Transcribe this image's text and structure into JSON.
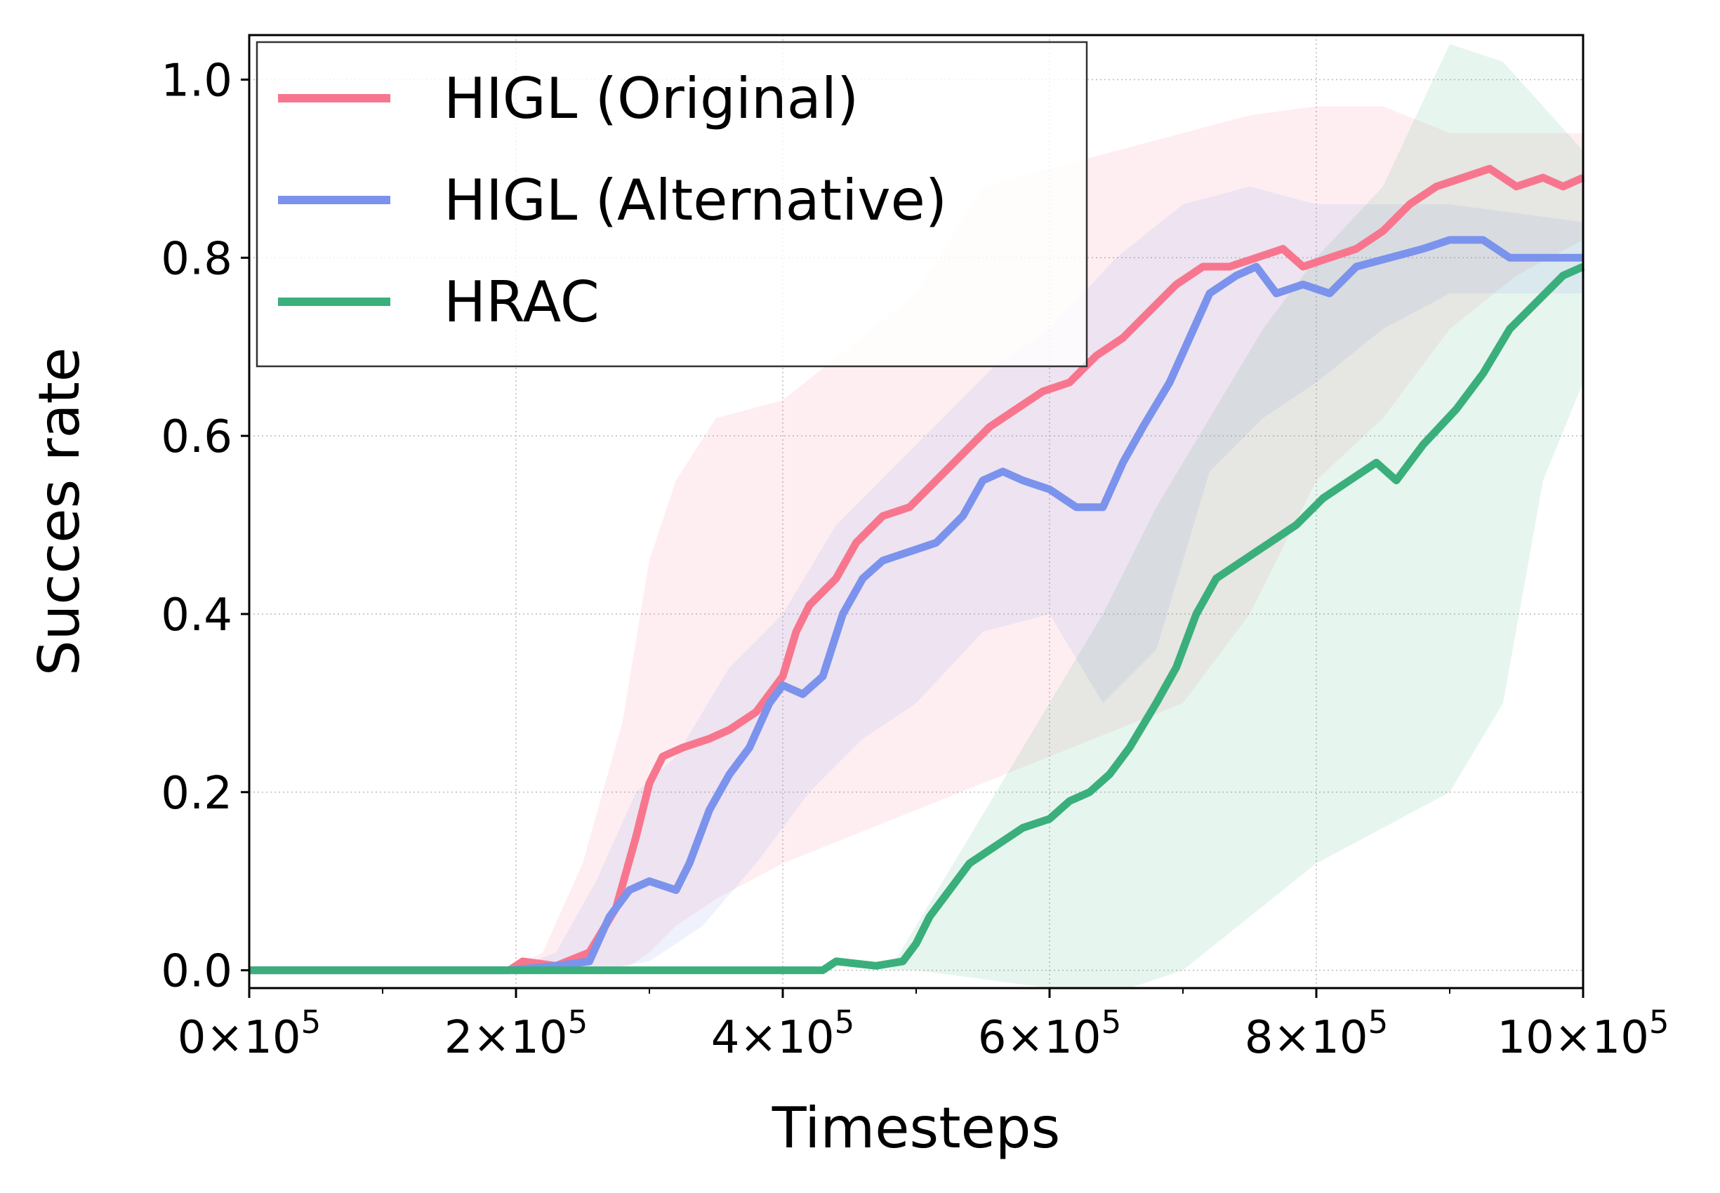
{
  "chart_data": {
    "type": "line",
    "title": "",
    "xlabel": "Timesteps",
    "ylabel": "Succes rate",
    "xlim": [
      0,
      1000000
    ],
    "ylim": [
      -0.02,
      1.05
    ],
    "grid": true,
    "legend_position": "top-left",
    "x_ticks": [
      {
        "value": 0,
        "mant": "0"
      },
      {
        "value": 200000,
        "mant": "2"
      },
      {
        "value": 400000,
        "mant": "4"
      },
      {
        "value": 600000,
        "mant": "6"
      },
      {
        "value": 800000,
        "mant": "8"
      },
      {
        "value": 1000000,
        "mant": "10"
      }
    ],
    "x_tick_base": "×10",
    "x_tick_exp": "5",
    "y_ticks": [
      {
        "value": 0.0,
        "label": "0.0"
      },
      {
        "value": 0.2,
        "label": "0.2"
      },
      {
        "value": 0.4,
        "label": "0.4"
      },
      {
        "value": 0.6,
        "label": "0.6"
      },
      {
        "value": 0.8,
        "label": "0.8"
      },
      {
        "value": 1.0,
        "label": "1.0"
      }
    ],
    "series": [
      {
        "name": "HIGL (Original)",
        "color": "#f7768e",
        "points": [
          [
            0,
            0
          ],
          [
            195000,
            0
          ],
          [
            205000,
            0.01
          ],
          [
            230000,
            0.005
          ],
          [
            255000,
            0.02
          ],
          [
            275000,
            0.07
          ],
          [
            290000,
            0.15
          ],
          [
            300000,
            0.21
          ],
          [
            310000,
            0.24
          ],
          [
            325000,
            0.25
          ],
          [
            345000,
            0.26
          ],
          [
            360000,
            0.27
          ],
          [
            380000,
            0.29
          ],
          [
            400000,
            0.33
          ],
          [
            410000,
            0.38
          ],
          [
            420000,
            0.41
          ],
          [
            440000,
            0.44
          ],
          [
            455000,
            0.48
          ],
          [
            475000,
            0.51
          ],
          [
            495000,
            0.52
          ],
          [
            515000,
            0.55
          ],
          [
            535000,
            0.58
          ],
          [
            555000,
            0.61
          ],
          [
            575000,
            0.63
          ],
          [
            595000,
            0.65
          ],
          [
            615000,
            0.66
          ],
          [
            635000,
            0.69
          ],
          [
            655000,
            0.71
          ],
          [
            675000,
            0.74
          ],
          [
            695000,
            0.77
          ],
          [
            715000,
            0.79
          ],
          [
            735000,
            0.79
          ],
          [
            755000,
            0.8
          ],
          [
            775000,
            0.81
          ],
          [
            790000,
            0.79
          ],
          [
            810000,
            0.8
          ],
          [
            830000,
            0.81
          ],
          [
            850000,
            0.83
          ],
          [
            870000,
            0.86
          ],
          [
            890000,
            0.88
          ],
          [
            910000,
            0.89
          ],
          [
            930000,
            0.9
          ],
          [
            950000,
            0.88
          ],
          [
            970000,
            0.89
          ],
          [
            985000,
            0.88
          ],
          [
            1000000,
            0.89
          ]
        ],
        "lower": [
          [
            0,
            0
          ],
          [
            195000,
            0
          ],
          [
            250000,
            0
          ],
          [
            280000,
            0
          ],
          [
            300000,
            0.02
          ],
          [
            320000,
            0.05
          ],
          [
            350000,
            0.08
          ],
          [
            400000,
            0.12
          ],
          [
            450000,
            0.15
          ],
          [
            500000,
            0.18
          ],
          [
            550000,
            0.21
          ],
          [
            600000,
            0.24
          ],
          [
            650000,
            0.27
          ],
          [
            700000,
            0.3
          ],
          [
            750000,
            0.4
          ],
          [
            800000,
            0.55
          ],
          [
            850000,
            0.62
          ],
          [
            900000,
            0.72
          ],
          [
            950000,
            0.78
          ],
          [
            1000000,
            0.82
          ]
        ],
        "upper": [
          [
            0,
            0
          ],
          [
            195000,
            0
          ],
          [
            220000,
            0.02
          ],
          [
            250000,
            0.12
          ],
          [
            280000,
            0.28
          ],
          [
            300000,
            0.46
          ],
          [
            320000,
            0.55
          ],
          [
            350000,
            0.62
          ],
          [
            400000,
            0.64
          ],
          [
            450000,
            0.7
          ],
          [
            500000,
            0.76
          ],
          [
            550000,
            0.88
          ],
          [
            600000,
            0.9
          ],
          [
            650000,
            0.92
          ],
          [
            700000,
            0.94
          ],
          [
            750000,
            0.96
          ],
          [
            800000,
            0.97
          ],
          [
            850000,
            0.97
          ],
          [
            900000,
            0.94
          ],
          [
            950000,
            0.94
          ],
          [
            1000000,
            0.94
          ]
        ]
      },
      {
        "name": "HIGL (Alternative)",
        "color": "#7b93ec",
        "points": [
          [
            0,
            0
          ],
          [
            195000,
            0
          ],
          [
            230000,
            0.005
          ],
          [
            255000,
            0.01
          ],
          [
            270000,
            0.06
          ],
          [
            285000,
            0.09
          ],
          [
            300000,
            0.1
          ],
          [
            320000,
            0.09
          ],
          [
            330000,
            0.12
          ],
          [
            345000,
            0.18
          ],
          [
            360000,
            0.22
          ],
          [
            375000,
            0.25
          ],
          [
            390000,
            0.3
          ],
          [
            400000,
            0.32
          ],
          [
            415000,
            0.31
          ],
          [
            430000,
            0.33
          ],
          [
            445000,
            0.4
          ],
          [
            460000,
            0.44
          ],
          [
            475000,
            0.46
          ],
          [
            495000,
            0.47
          ],
          [
            515000,
            0.48
          ],
          [
            535000,
            0.51
          ],
          [
            550000,
            0.55
          ],
          [
            565000,
            0.56
          ],
          [
            580000,
            0.55
          ],
          [
            600000,
            0.54
          ],
          [
            620000,
            0.52
          ],
          [
            640000,
            0.52
          ],
          [
            655000,
            0.57
          ],
          [
            670000,
            0.61
          ],
          [
            690000,
            0.66
          ],
          [
            705000,
            0.71
          ],
          [
            720000,
            0.76
          ],
          [
            740000,
            0.78
          ],
          [
            755000,
            0.79
          ],
          [
            770000,
            0.76
          ],
          [
            790000,
            0.77
          ],
          [
            810000,
            0.76
          ],
          [
            830000,
            0.79
          ],
          [
            855000,
            0.8
          ],
          [
            880000,
            0.81
          ],
          [
            900000,
            0.82
          ],
          [
            925000,
            0.82
          ],
          [
            945000,
            0.8
          ],
          [
            970000,
            0.8
          ],
          [
            1000000,
            0.8
          ]
        ],
        "lower": [
          [
            0,
            0
          ],
          [
            195000,
            0
          ],
          [
            260000,
            0
          ],
          [
            300000,
            0.01
          ],
          [
            340000,
            0.05
          ],
          [
            380000,
            0.12
          ],
          [
            420000,
            0.2
          ],
          [
            460000,
            0.26
          ],
          [
            500000,
            0.3
          ],
          [
            550000,
            0.38
          ],
          [
            600000,
            0.4
          ],
          [
            640000,
            0.3
          ],
          [
            680000,
            0.36
          ],
          [
            720000,
            0.56
          ],
          [
            760000,
            0.62
          ],
          [
            800000,
            0.66
          ],
          [
            850000,
            0.72
          ],
          [
            900000,
            0.76
          ],
          [
            950000,
            0.76
          ],
          [
            1000000,
            0.76
          ]
        ],
        "upper": [
          [
            0,
            0
          ],
          [
            195000,
            0
          ],
          [
            230000,
            0.02
          ],
          [
            260000,
            0.1
          ],
          [
            290000,
            0.2
          ],
          [
            320000,
            0.24
          ],
          [
            360000,
            0.34
          ],
          [
            400000,
            0.4
          ],
          [
            440000,
            0.5
          ],
          [
            480000,
            0.56
          ],
          [
            520000,
            0.62
          ],
          [
            560000,
            0.68
          ],
          [
            600000,
            0.72
          ],
          [
            650000,
            0.8
          ],
          [
            700000,
            0.86
          ],
          [
            750000,
            0.88
          ],
          [
            800000,
            0.86
          ],
          [
            850000,
            0.86
          ],
          [
            900000,
            0.86
          ],
          [
            950000,
            0.85
          ],
          [
            1000000,
            0.84
          ]
        ]
      },
      {
        "name": "HRAC",
        "color": "#3aaf7c",
        "points": [
          [
            0,
            0
          ],
          [
            430000,
            0
          ],
          [
            440000,
            0.01
          ],
          [
            470000,
            0.005
          ],
          [
            490000,
            0.01
          ],
          [
            500000,
            0.03
          ],
          [
            510000,
            0.06
          ],
          [
            525000,
            0.09
          ],
          [
            540000,
            0.12
          ],
          [
            560000,
            0.14
          ],
          [
            580000,
            0.16
          ],
          [
            600000,
            0.17
          ],
          [
            615000,
            0.19
          ],
          [
            630000,
            0.2
          ],
          [
            645000,
            0.22
          ],
          [
            660000,
            0.25
          ],
          [
            680000,
            0.3
          ],
          [
            695000,
            0.34
          ],
          [
            710000,
            0.4
          ],
          [
            725000,
            0.44
          ],
          [
            745000,
            0.46
          ],
          [
            765000,
            0.48
          ],
          [
            785000,
            0.5
          ],
          [
            805000,
            0.53
          ],
          [
            825000,
            0.55
          ],
          [
            845000,
            0.57
          ],
          [
            860000,
            0.55
          ],
          [
            880000,
            0.59
          ],
          [
            905000,
            0.63
          ],
          [
            925000,
            0.67
          ],
          [
            945000,
            0.72
          ],
          [
            965000,
            0.75
          ],
          [
            985000,
            0.78
          ],
          [
            1000000,
            0.79
          ]
        ],
        "lower": [
          [
            0,
            0
          ],
          [
            500000,
            0
          ],
          [
            600000,
            -0.02
          ],
          [
            660000,
            -0.02
          ],
          [
            700000,
            0.0
          ],
          [
            750000,
            0.06
          ],
          [
            800000,
            0.12
          ],
          [
            850000,
            0.16
          ],
          [
            900000,
            0.2
          ],
          [
            940000,
            0.3
          ],
          [
            970000,
            0.55
          ],
          [
            1000000,
            0.66
          ]
        ],
        "upper": [
          [
            0,
            0
          ],
          [
            480000,
            0
          ],
          [
            520000,
            0.1
          ],
          [
            560000,
            0.2
          ],
          [
            600000,
            0.3
          ],
          [
            640000,
            0.4
          ],
          [
            680000,
            0.52
          ],
          [
            720000,
            0.62
          ],
          [
            760000,
            0.72
          ],
          [
            800000,
            0.8
          ],
          [
            850000,
            0.88
          ],
          [
            900000,
            1.04
          ],
          [
            940000,
            1.02
          ],
          [
            1000000,
            0.92
          ]
        ]
      }
    ]
  }
}
